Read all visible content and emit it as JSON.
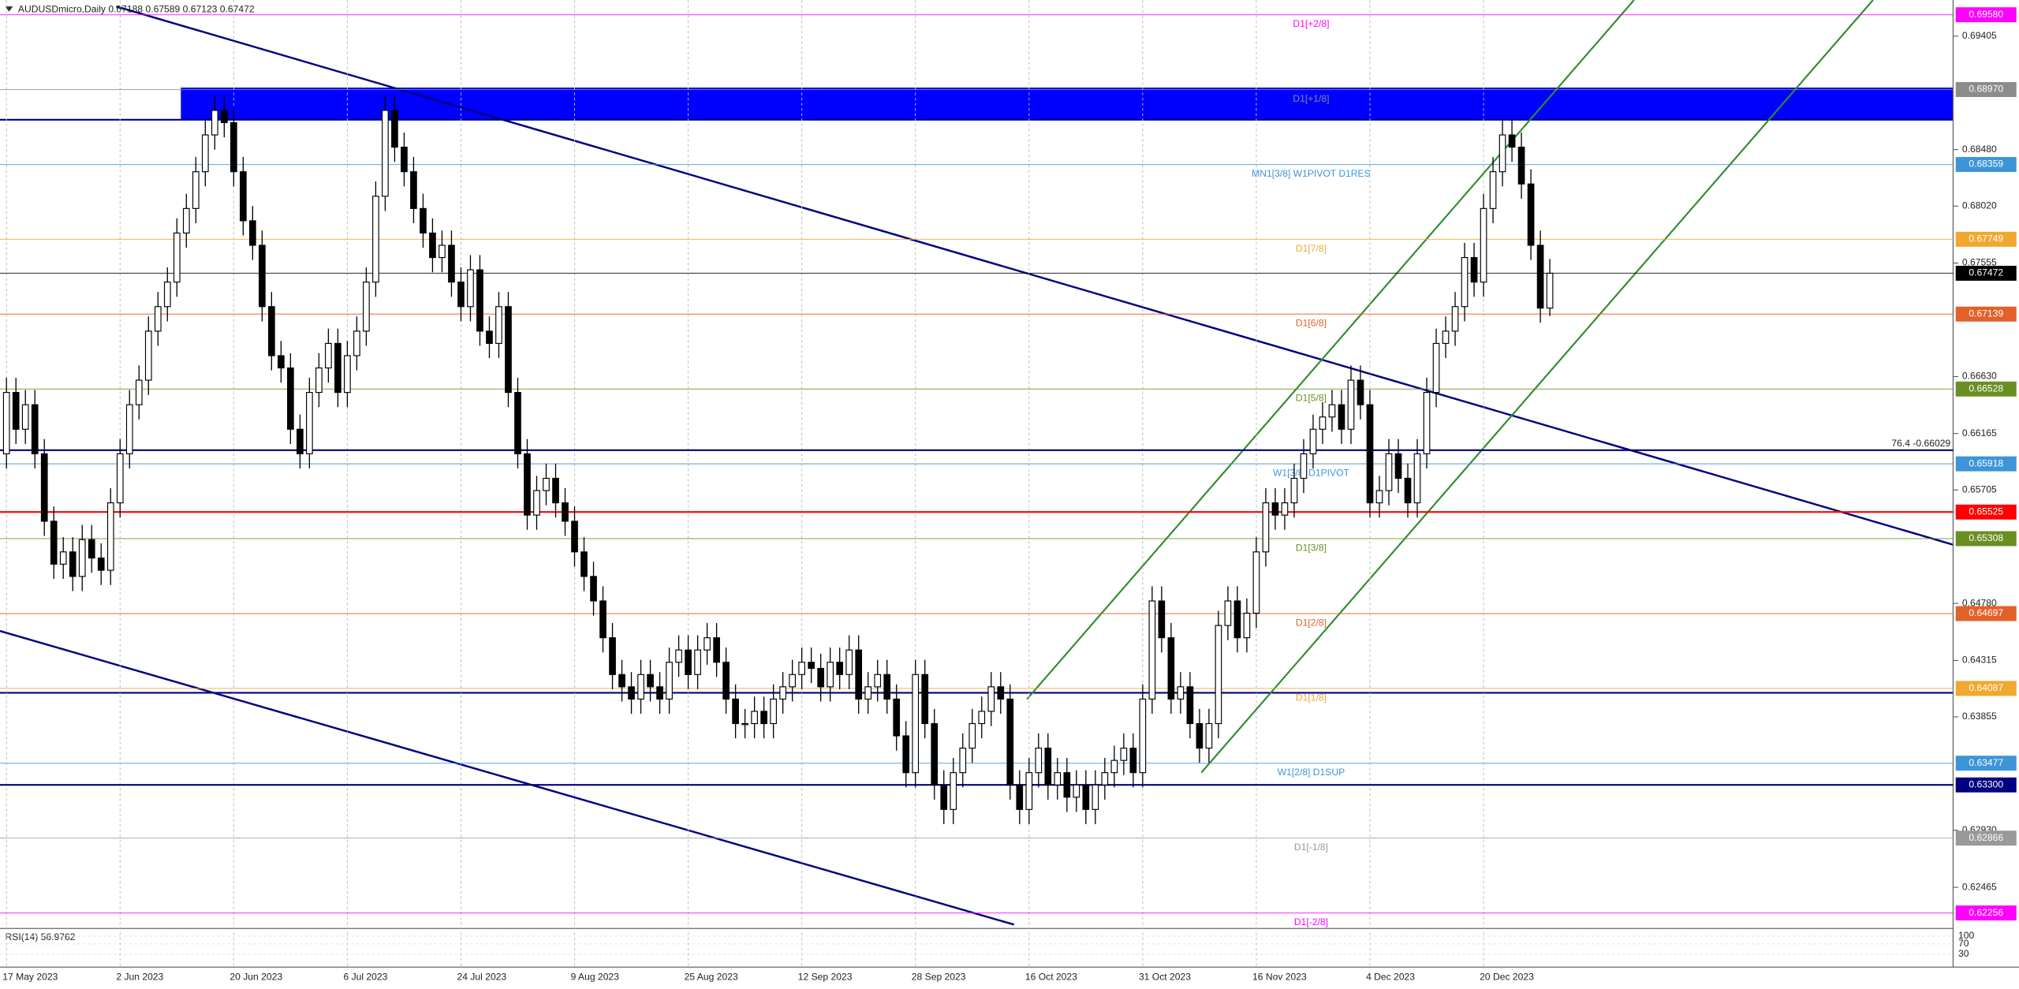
{
  "chart_data": {
    "type": "candlestick",
    "title": "AUDUSDmicro,Daily  0.67188 0.67589 0.67123 0.67472",
    "categories": [
      "17 May 2023",
      null,
      null,
      null,
      null,
      null,
      null,
      null,
      null,
      null,
      null,
      null,
      "2 Jun 2023",
      null,
      null,
      null,
      null,
      null,
      null,
      null,
      null,
      null,
      null,
      null,
      "20 Jun 2023",
      null,
      null,
      null,
      null,
      null,
      null,
      null,
      null,
      null,
      null,
      null,
      "6 Jul 2023",
      null,
      null,
      null,
      null,
      null,
      null,
      null,
      null,
      null,
      null,
      null,
      "24 Jul 2023",
      null,
      null,
      null,
      null,
      null,
      null,
      null,
      null,
      null,
      null,
      null,
      "9 Aug 2023",
      null,
      null,
      null,
      null,
      null,
      null,
      null,
      null,
      null,
      null,
      null,
      "25 Aug 2023",
      null,
      null,
      null,
      null,
      null,
      null,
      null,
      null,
      null,
      null,
      null,
      "12 Sep 2023",
      null,
      null,
      null,
      null,
      null,
      null,
      null,
      null,
      null,
      null,
      null,
      "28 Sep 2023",
      null,
      null,
      null,
      null,
      null,
      null,
      null,
      null,
      null,
      null,
      null,
      "16 Oct 2023",
      null,
      null,
      null,
      null,
      null,
      null,
      null,
      null,
      null,
      null,
      null,
      "31 Oct 2023",
      null,
      null,
      null,
      null,
      null,
      null,
      null,
      null,
      null,
      null,
      null,
      "16 Nov 2023",
      null,
      null,
      null,
      null,
      null,
      null,
      null,
      null,
      null,
      null,
      null,
      "4 Dec 2023",
      null,
      null,
      null,
      null,
      null,
      null,
      null,
      null,
      null,
      null,
      null,
      "20 Dec 2023",
      null,
      null,
      null,
      null,
      null,
      null,
      null
    ],
    "open": [
      0.66,
      0.665,
      0.662,
      0.664,
      0.66,
      0.6545,
      0.651,
      0.652,
      0.65,
      0.653,
      0.6515,
      0.6505,
      0.656,
      0.66,
      0.664,
      0.666,
      0.67,
      0.672,
      0.674,
      0.678,
      0.68,
      0.683,
      0.686,
      0.688,
      0.687,
      0.683,
      0.679,
      0.677,
      0.672,
      0.668,
      0.667,
      0.662,
      0.66,
      0.665,
      0.667,
      0.669,
      0.665,
      0.668,
      0.67,
      0.674,
      0.681,
      0.688,
      0.685,
      0.683,
      0.68,
      0.678,
      0.676,
      0.677,
      0.674,
      0.672,
      0.675,
      0.67,
      0.669,
      0.672,
      0.665,
      0.66,
      0.655,
      0.657,
      0.658,
      0.656,
      0.6545,
      0.652,
      0.65,
      0.648,
      0.645,
      0.642,
      0.641,
      0.64,
      0.642,
      0.641,
      0.64,
      0.643,
      0.644,
      0.642,
      0.644,
      0.645,
      0.643,
      0.64,
      0.638,
      0.638,
      0.639,
      0.638,
      0.64,
      0.641,
      0.642,
      0.643,
      0.6425,
      0.641,
      0.643,
      0.642,
      0.644,
      0.64,
      0.641,
      0.642,
      0.64,
      0.637,
      0.634,
      0.642,
      0.638,
      0.633,
      0.631,
      0.634,
      0.636,
      0.638,
      0.639,
      0.641,
      0.64,
      0.633,
      0.631,
      0.634,
      0.636,
      0.633,
      0.634,
      0.632,
      0.633,
      0.631,
      0.633,
      0.634,
      0.635,
      0.636,
      0.634,
      0.64,
      0.648,
      0.645,
      0.64,
      0.641,
      0.638,
      0.636,
      0.638,
      0.646,
      0.648,
      0.645,
      0.647,
      0.652,
      0.656,
      0.655,
      0.656,
      0.658,
      0.66,
      0.662,
      0.663,
      0.664,
      0.662,
      0.666,
      0.664,
      0.656,
      0.657,
      0.66,
      0.658,
      0.656,
      0.66,
      0.665,
      0.669,
      0.67,
      0.672,
      0.676,
      0.674,
      0.68,
      0.683,
      0.686,
      0.685,
      0.682,
      0.677,
      0.67188
    ],
    "high": [
      0.6662,
      0.6662,
      0.6652,
      0.6652,
      0.6612,
      0.6557,
      0.6532,
      0.6532,
      0.6542,
      0.6542,
      0.6527,
      0.6572,
      0.6612,
      0.6652,
      0.6672,
      0.6712,
      0.6732,
      0.6752,
      0.6792,
      0.6812,
      0.6842,
      0.6872,
      0.6892,
      0.6892,
      0.6882,
      0.6842,
      0.6802,
      0.6782,
      0.6732,
      0.6692,
      0.6682,
      0.6632,
      0.6662,
      0.6682,
      0.6702,
      0.6702,
      0.6692,
      0.6712,
      0.6752,
      0.6822,
      0.6892,
      0.6892,
      0.6862,
      0.6842,
      0.6812,
      0.6792,
      0.6782,
      0.6782,
      0.6752,
      0.6762,
      0.6762,
      0.6712,
      0.6732,
      0.6732,
      0.6662,
      0.6612,
      0.6582,
      0.6592,
      0.6592,
      0.6572,
      0.6557,
      0.6532,
      0.6512,
      0.6492,
      0.6462,
      0.6432,
      0.6422,
      0.6432,
      0.6432,
      0.6422,
      0.6442,
      0.6452,
      0.6452,
      0.6452,
      0.6462,
      0.6462,
      0.6442,
      0.6412,
      0.6392,
      0.6402,
      0.6402,
      0.6412,
      0.6422,
      0.6432,
      0.6442,
      0.6442,
      0.6437,
      0.6442,
      0.6442,
      0.6452,
      0.6452,
      0.6422,
      0.6432,
      0.6432,
      0.6412,
      0.6382,
      0.6432,
      0.6432,
      0.6392,
      0.6342,
      0.6352,
      0.6372,
      0.6392,
      0.6402,
      0.6422,
      0.6422,
      0.6412,
      0.6342,
      0.6352,
      0.6372,
      0.6372,
      0.6352,
      0.6352,
      0.6342,
      0.6342,
      0.6342,
      0.6352,
      0.6362,
      0.6372,
      0.6372,
      0.6412,
      0.6492,
      0.6492,
      0.6462,
      0.6422,
      0.6422,
      0.6392,
      0.6392,
      0.6472,
      0.6492,
      0.6492,
      0.6482,
      0.6532,
      0.6572,
      0.6572,
      0.6572,
      0.6592,
      0.6612,
      0.6632,
      0.6642,
      0.6652,
      0.6652,
      0.6672,
      0.6672,
      0.6652,
      0.6582,
      0.6612,
      0.6612,
      0.6592,
      0.6612,
      0.6662,
      0.6702,
      0.6712,
      0.6732,
      0.6772,
      0.6772,
      0.6812,
      0.6842,
      0.6872,
      0.6872,
      0.6862,
      0.6832,
      0.6782,
      0.67589
    ],
    "low": [
      0.6588,
      0.6608,
      0.6608,
      0.6588,
      0.6533,
      0.6498,
      0.6498,
      0.6488,
      0.6488,
      0.6503,
      0.6493,
      0.6493,
      0.6548,
      0.6588,
      0.6628,
      0.6648,
      0.6688,
      0.6708,
      0.6728,
      0.6768,
      0.6788,
      0.6818,
      0.6848,
      0.6858,
      0.6818,
      0.6778,
      0.6758,
      0.6708,
      0.6668,
      0.6658,
      0.6608,
      0.6588,
      0.6588,
      0.6638,
      0.6658,
      0.6638,
      0.6638,
      0.6668,
      0.6688,
      0.6728,
      0.6798,
      0.6838,
      0.6818,
      0.6788,
      0.6768,
      0.6748,
      0.6748,
      0.6728,
      0.6708,
      0.6708,
      0.6688,
      0.6678,
      0.6678,
      0.6638,
      0.6588,
      0.6538,
      0.6538,
      0.6558,
      0.6548,
      0.6533,
      0.6508,
      0.6488,
      0.6468,
      0.6438,
      0.6408,
      0.6398,
      0.6388,
      0.6388,
      0.6398,
      0.6388,
      0.6388,
      0.6418,
      0.6408,
      0.6408,
      0.6428,
      0.6418,
      0.6388,
      0.6368,
      0.6368,
      0.6368,
      0.6368,
      0.6368,
      0.6388,
      0.6398,
      0.6408,
      0.6413,
      0.6398,
      0.6398,
      0.6408,
      0.6408,
      0.6388,
      0.6388,
      0.6398,
      0.6388,
      0.6358,
      0.6328,
      0.6328,
      0.6368,
      0.6318,
      0.6298,
      0.6298,
      0.6328,
      0.6348,
      0.6368,
      0.6378,
      0.6388,
      0.6318,
      0.6298,
      0.6298,
      0.6328,
      0.6318,
      0.6318,
      0.6308,
      0.6308,
      0.6298,
      0.6298,
      0.6318,
      0.6328,
      0.6338,
      0.6328,
      0.6328,
      0.6388,
      0.6438,
      0.6388,
      0.6388,
      0.6368,
      0.6348,
      0.6348,
      0.6368,
      0.6448,
      0.6438,
      0.6438,
      0.6458,
      0.6508,
      0.6538,
      0.6538,
      0.6548,
      0.6568,
      0.6588,
      0.6608,
      0.6618,
      0.6608,
      0.6608,
      0.6628,
      0.6548,
      0.6548,
      0.6558,
      0.6568,
      0.6548,
      0.6548,
      0.6588,
      0.6638,
      0.6678,
      0.6688,
      0.6708,
      0.6728,
      0.6728,
      0.6788,
      0.6818,
      0.6838,
      0.6808,
      0.6758,
      0.6707,
      0.67123
    ],
    "close": [
      0.665,
      0.662,
      0.664,
      0.66,
      0.6545,
      0.651,
      0.652,
      0.65,
      0.653,
      0.6515,
      0.6505,
      0.656,
      0.66,
      0.664,
      0.666,
      0.67,
      0.672,
      0.674,
      0.678,
      0.68,
      0.683,
      0.686,
      0.688,
      0.687,
      0.683,
      0.679,
      0.677,
      0.672,
      0.668,
      0.667,
      0.662,
      0.66,
      0.665,
      0.667,
      0.669,
      0.665,
      0.668,
      0.67,
      0.674,
      0.681,
      0.688,
      0.685,
      0.683,
      0.68,
      0.678,
      0.676,
      0.677,
      0.674,
      0.672,
      0.675,
      0.67,
      0.669,
      0.672,
      0.665,
      0.66,
      0.655,
      0.657,
      0.658,
      0.656,
      0.6545,
      0.652,
      0.65,
      0.648,
      0.645,
      0.642,
      0.641,
      0.64,
      0.642,
      0.641,
      0.64,
      0.643,
      0.644,
      0.642,
      0.644,
      0.645,
      0.643,
      0.64,
      0.638,
      0.638,
      0.639,
      0.638,
      0.64,
      0.641,
      0.642,
      0.643,
      0.6425,
      0.641,
      0.643,
      0.642,
      0.644,
      0.64,
      0.641,
      0.642,
      0.64,
      0.637,
      0.634,
      0.642,
      0.638,
      0.633,
      0.631,
      0.634,
      0.636,
      0.638,
      0.639,
      0.641,
      0.64,
      0.633,
      0.631,
      0.634,
      0.636,
      0.633,
      0.634,
      0.632,
      0.633,
      0.631,
      0.633,
      0.634,
      0.635,
      0.636,
      0.634,
      0.64,
      0.648,
      0.645,
      0.64,
      0.641,
      0.638,
      0.636,
      0.638,
      0.646,
      0.648,
      0.645,
      0.647,
      0.652,
      0.656,
      0.655,
      0.656,
      0.658,
      0.66,
      0.662,
      0.663,
      0.664,
      0.662,
      0.666,
      0.664,
      0.656,
      0.657,
      0.66,
      0.658,
      0.656,
      0.66,
      0.665,
      0.669,
      0.67,
      0.672,
      0.676,
      0.674,
      0.68,
      0.683,
      0.686,
      0.685,
      0.682,
      0.677,
      0.67188,
      0.67472
    ],
    "ylim": [
      0.6214,
      0.697
    ],
    "yticks": [
      0.69405,
      {
        "value": 0.6848,
        "label": "0.68480"
      },
      {
        "value": 0.6802,
        "label": "0.68020"
      },
      0.67555,
      {
        "value": 0.6663,
        "label": "0.66630"
      },
      0.66165,
      0.65705,
      {
        "value": 0.6478,
        "label": "0.64780"
      },
      0.64315,
      0.63855,
      {
        "value": 0.6293,
        "label": "0.62930"
      },
      0.62465
    ],
    "levels": [
      {
        "value": 0.6958,
        "value_label": "0.69580",
        "text": "D1[+2/8]",
        "color": "#ff00ff"
      },
      {
        "value": 0.6897,
        "value_label": "0.68970",
        "text": "D1[+1/8]",
        "color": "#8c8c8c"
      },
      {
        "value": 0.68359,
        "value_label": "0.68359",
        "text": "MN1[3/8] W1PIVOT D1RES",
        "color": "#3d95d8"
      },
      {
        "value": 0.67749,
        "value_label": "0.67749",
        "text": "D1[7/8]",
        "color": "#f0a830"
      },
      {
        "value": 0.67472,
        "value_label": "0.67472",
        "color": "#000000"
      },
      {
        "value": 0.67139,
        "value_label": "0.67139",
        "text": "D1[6/8]",
        "color": "#e2612a"
      },
      {
        "value": 0.66528,
        "value_label": "0.66528",
        "text": "D1[5/8]",
        "color": "#6b8e23"
      },
      {
        "value": 0.66029,
        "note": "76.4 -0.66029",
        "color": "#000080"
      },
      {
        "value": 0.65918,
        "value_label": "0.65918",
        "text": "W1[3/8] D1PIVOT",
        "color": "#3d95d8"
      },
      {
        "value": 0.65525,
        "value_label": "0.65525",
        "color": "#ff0000"
      },
      {
        "value": 0.65308,
        "value_label": "0.65308",
        "text": "D1[3/8]",
        "color": "#6b8e23"
      },
      {
        "value": 0.64697,
        "value_label": "0.64697",
        "text": "D1[2/8]",
        "color": "#e2612a"
      },
      {
        "value": 0.64087,
        "value_label": "0.64087",
        "text": "D1[1/8]",
        "color": "#f0a830"
      },
      {
        "value": 0.63477,
        "value_label": "0.63477",
        "text": "W1[2/8] D1SUP",
        "color": "#3d95d8"
      },
      {
        "value": 0.633,
        "value_label": "0.63300",
        "color": "#000080"
      },
      {
        "value": 0.62866,
        "value_label": "0.62866",
        "text": "D1[-1/8]",
        "color": "#999999"
      },
      {
        "value": 0.62256,
        "value_label": "0.62256",
        "text": "D1[-2/8]",
        "color": "#ff00ff"
      }
    ],
    "rsi": {
      "title": "RSI(14) 56.9762",
      "ylim": [
        0,
        100
      ],
      "yticks": [
        100,
        70,
        30
      ]
    }
  }
}
